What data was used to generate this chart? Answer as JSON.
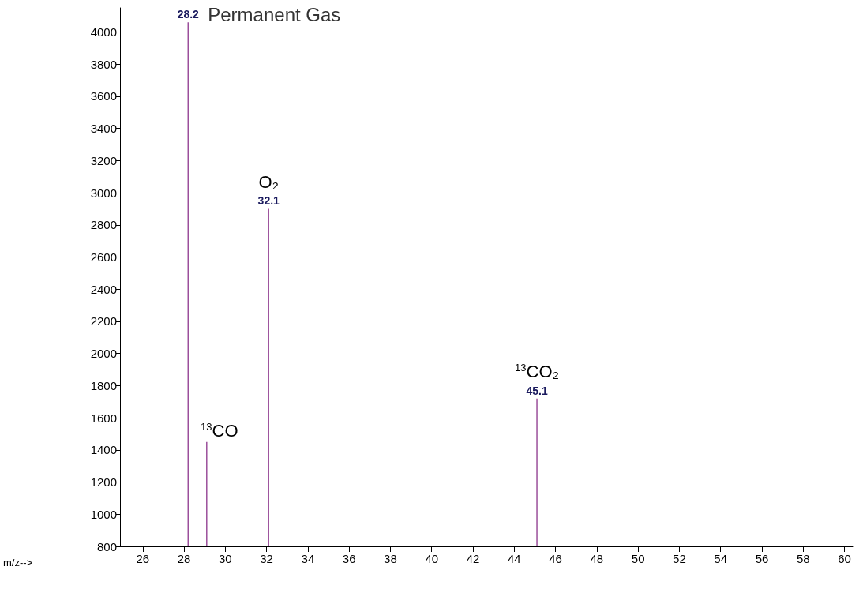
{
  "chart_data": {
    "type": "bar",
    "title": "Permanent Gas",
    "x": [
      28.2,
      29.1,
      32.1,
      45.1
    ],
    "values": [
      4060,
      1450,
      2900,
      1720
    ],
    "color": "#9b4f9b",
    "xlim": [
      24.9,
      60.4
    ],
    "xticks": [
      26,
      28,
      30,
      32,
      34,
      36,
      38,
      40,
      42,
      44,
      46,
      48,
      50,
      52,
      54,
      56,
      58,
      60
    ],
    "ylim": [
      800,
      4150
    ],
    "yticks": [
      800,
      1000,
      1200,
      1400,
      1600,
      1800,
      2000,
      2200,
      2400,
      2600,
      2800,
      3000,
      3200,
      3400,
      3600,
      3800,
      4000
    ],
    "annotations": [
      {
        "text": "28.2",
        "x": 28.2,
        "y": 4060
      },
      {
        "text": "$^{13}$CO",
        "x": 29.1,
        "y": 1450
      },
      {
        "text": "32.1",
        "x": 32.1,
        "y": 2900
      },
      {
        "text": "O₂",
        "x": 32.1,
        "y": 2900
      },
      {
        "text": "45.1",
        "x": 45.1,
        "y": 1720
      },
      {
        "text": "$^{13}$CO₂",
        "x": 45.1,
        "y": 1720
      },
      "m/z-->"
    ],
    "grid": false
  }
}
